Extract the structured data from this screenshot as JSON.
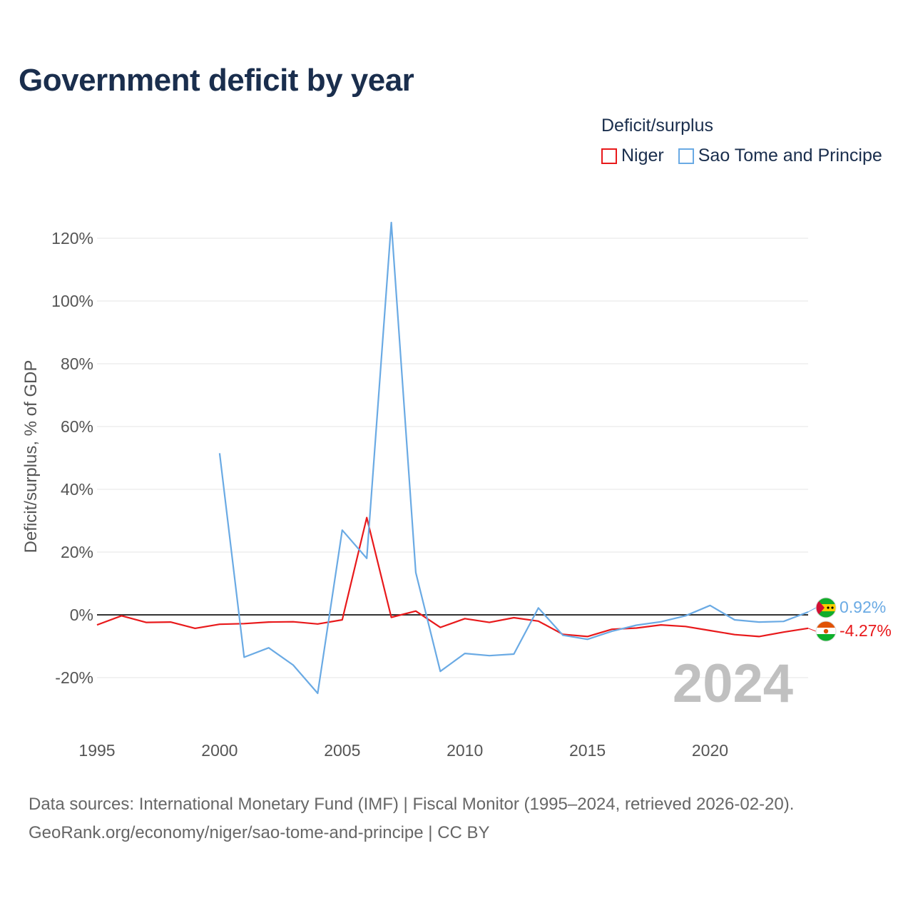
{
  "title": "Government deficit by year",
  "legend": {
    "title": "Deficit/surplus",
    "items": [
      {
        "label": "Niger",
        "color": "#e8191b"
      },
      {
        "label": "Sao Tome and Principe",
        "color": "#6aaae4"
      }
    ]
  },
  "year_watermark": "2024",
  "sources": {
    "line1": "Data sources: International Monetary Fund (IMF) | Fiscal Monitor (1995–2024, retrieved 2026-02-20).",
    "line2": "GeoRank.org/economy/niger/sao-tome-and-principe | CC BY"
  },
  "chart_data": {
    "type": "line",
    "ylabel": "Deficit/surplus, % of GDP",
    "xlabel": "",
    "xlim": [
      1995,
      2024
    ],
    "ylim": [
      -30,
      130
    ],
    "x_ticks": [
      1995,
      2000,
      2005,
      2010,
      2015,
      2020
    ],
    "y_ticks": [
      -20,
      0,
      20,
      40,
      60,
      80,
      100,
      120
    ],
    "y_tick_labels": [
      "-20%",
      "0%",
      "20%",
      "40%",
      "60%",
      "80%",
      "100%",
      "120%"
    ],
    "grid": true,
    "legend_position": "top-right",
    "series": [
      {
        "name": "Niger",
        "color": "#e8191b",
        "x": [
          1995,
          1996,
          1997,
          1998,
          1999,
          2000,
          2001,
          2002,
          2003,
          2004,
          2005,
          2006,
          2007,
          2008,
          2009,
          2010,
          2011,
          2012,
          2013,
          2014,
          2015,
          2016,
          2017,
          2018,
          2019,
          2020,
          2021,
          2022,
          2023,
          2024
        ],
        "values": [
          -3.2,
          -0.3,
          -2.4,
          -2.3,
          -4.3,
          -3.0,
          -2.8,
          -2.3,
          -2.2,
          -2.9,
          -1.6,
          31.0,
          -0.8,
          1.2,
          -4.0,
          -1.2,
          -2.4,
          -0.9,
          -2.0,
          -6.2,
          -6.9,
          -4.6,
          -4.2,
          -3.2,
          -3.7,
          -5.0,
          -6.3,
          -6.9,
          -5.5,
          -4.27
        ],
        "end_label": "-4.27%"
      },
      {
        "name": "Sao Tome and Principe",
        "color": "#6aaae4",
        "x": [
          2000,
          2001,
          2002,
          2003,
          2004,
          2005,
          2006,
          2007,
          2008,
          2009,
          2010,
          2011,
          2012,
          2013,
          2014,
          2015,
          2016,
          2017,
          2018,
          2019,
          2020,
          2021,
          2022,
          2023,
          2024
        ],
        "values": [
          51.5,
          -13.5,
          -10.5,
          -16.0,
          -25.0,
          27.0,
          18.0,
          125.0,
          13.5,
          -18.0,
          -12.3,
          -13.0,
          -12.5,
          2.2,
          -6.5,
          -7.8,
          -5.2,
          -3.3,
          -2.2,
          -0.3,
          3.0,
          -1.6,
          -2.3,
          -2.1,
          0.92
        ],
        "end_label": "0.92%"
      }
    ]
  }
}
